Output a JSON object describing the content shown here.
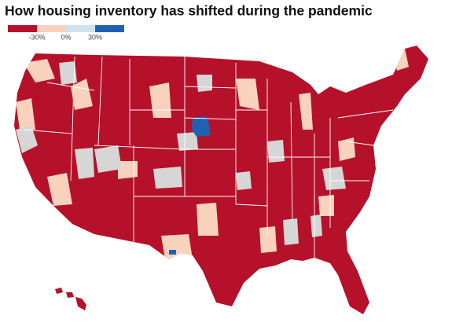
{
  "title": "How housing inventory has shifted during the pandemic",
  "legend": {
    "colors": [
      "#b5112a",
      "#f9d2bd",
      "#cfe3ee",
      "#1f63b0"
    ],
    "ticks": [
      {
        "value": -30,
        "label": "-30%"
      },
      {
        "value": 0,
        "label": "0%"
      },
      {
        "value": 30,
        "label": "30%"
      }
    ]
  }
}
